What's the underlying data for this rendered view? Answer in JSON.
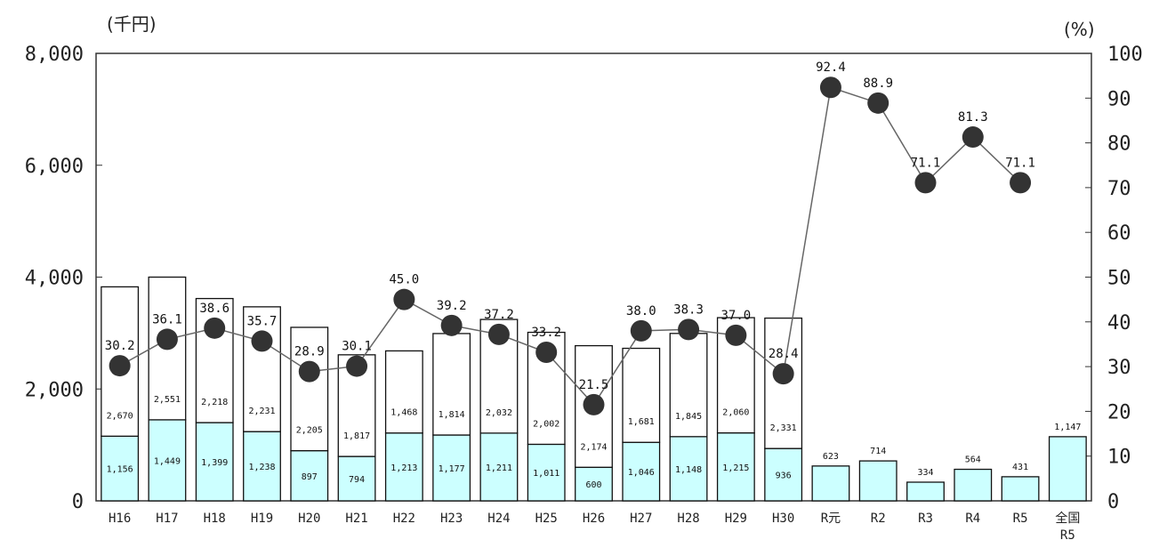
{
  "chart_data": {
    "type": "bar",
    "y_unit_left": "(千円)",
    "y_unit_right": "(%)",
    "ylim_left": [
      0,
      8000
    ],
    "ylim_right": [
      0,
      100
    ],
    "yticks_left": [
      "0",
      "2,000",
      "4,000",
      "6,000",
      "8,000"
    ],
    "yticks_right": [
      "0",
      "10",
      "20",
      "30",
      "40",
      "50",
      "60",
      "70",
      "80",
      "90",
      "100"
    ],
    "categories": [
      {
        "line1": "H16",
        "line2": ""
      },
      {
        "line1": "H17",
        "line2": ""
      },
      {
        "line1": "H18",
        "line2": ""
      },
      {
        "line1": "H19",
        "line2": ""
      },
      {
        "line1": "H20",
        "line2": ""
      },
      {
        "line1": "H21",
        "line2": ""
      },
      {
        "line1": "H22",
        "line2": ""
      },
      {
        "line1": "H23",
        "line2": ""
      },
      {
        "line1": "H24",
        "line2": ""
      },
      {
        "line1": "H25",
        "line2": ""
      },
      {
        "line1": "H26",
        "line2": ""
      },
      {
        "line1": "H27",
        "line2": ""
      },
      {
        "line1": "H28",
        "line2": ""
      },
      {
        "line1": "H29",
        "line2": ""
      },
      {
        "line1": "H30",
        "line2": ""
      },
      {
        "line1": "R元",
        "line2": ""
      },
      {
        "line1": "R2",
        "line2": ""
      },
      {
        "line1": "R3",
        "line2": ""
      },
      {
        "line1": "R4",
        "line2": ""
      },
      {
        "line1": "R5",
        "line2": ""
      },
      {
        "line1": "全国",
        "line2": "R5"
      }
    ],
    "series": [
      {
        "kind": "stacked-bar-lower",
        "axis": "left",
        "color": "#ccffff",
        "values": [
          1156,
          1449,
          1399,
          1238,
          897,
          794,
          1213,
          1177,
          1211,
          1011,
          600,
          1046,
          1148,
          1215,
          936,
          623,
          714,
          334,
          564,
          431,
          1147
        ],
        "labels": [
          "1,156",
          "1,449",
          "1,399",
          "1,238",
          "897",
          "794",
          "1,213",
          "1,177",
          "1,211",
          "1,011",
          "600",
          "1,046",
          "1,148",
          "1,215",
          "936",
          "623",
          "714",
          "334",
          "564",
          "431",
          "1,147"
        ]
      },
      {
        "kind": "stacked-bar-upper",
        "axis": "left",
        "color": "#ffffff",
        "values": [
          2670,
          2551,
          2218,
          2231,
          2205,
          1817,
          1468,
          1814,
          2032,
          2002,
          2174,
          1681,
          1845,
          2060,
          2331,
          null,
          null,
          null,
          null,
          null,
          null
        ],
        "labels": [
          "2,670",
          "2,551",
          "2,218",
          "2,231",
          "2,205",
          "1,817",
          "1,468",
          "1,814",
          "2,032",
          "2,002",
          "2,174",
          "1,681",
          "1,845",
          "2,060",
          "2,331",
          "",
          "",
          "",
          "",
          "",
          ""
        ]
      },
      {
        "kind": "line",
        "axis": "right",
        "color": "#333333",
        "values": [
          30.2,
          36.1,
          38.6,
          35.7,
          28.9,
          30.1,
          45.0,
          39.2,
          37.2,
          33.2,
          21.5,
          38.0,
          38.3,
          37.0,
          28.4,
          92.4,
          88.9,
          71.1,
          81.3,
          71.1,
          null
        ],
        "labels": [
          "30.2",
          "36.1",
          "38.6",
          "35.7",
          "28.9",
          "30.1",
          "45.0",
          "39.2",
          "37.2",
          "33.2",
          "21.5",
          "38.0",
          "38.3",
          "37.0",
          "28.4",
          "92.4",
          "88.9",
          "71.1",
          "81.3",
          "71.1",
          ""
        ]
      }
    ],
    "grid": false,
    "legend": "none"
  }
}
